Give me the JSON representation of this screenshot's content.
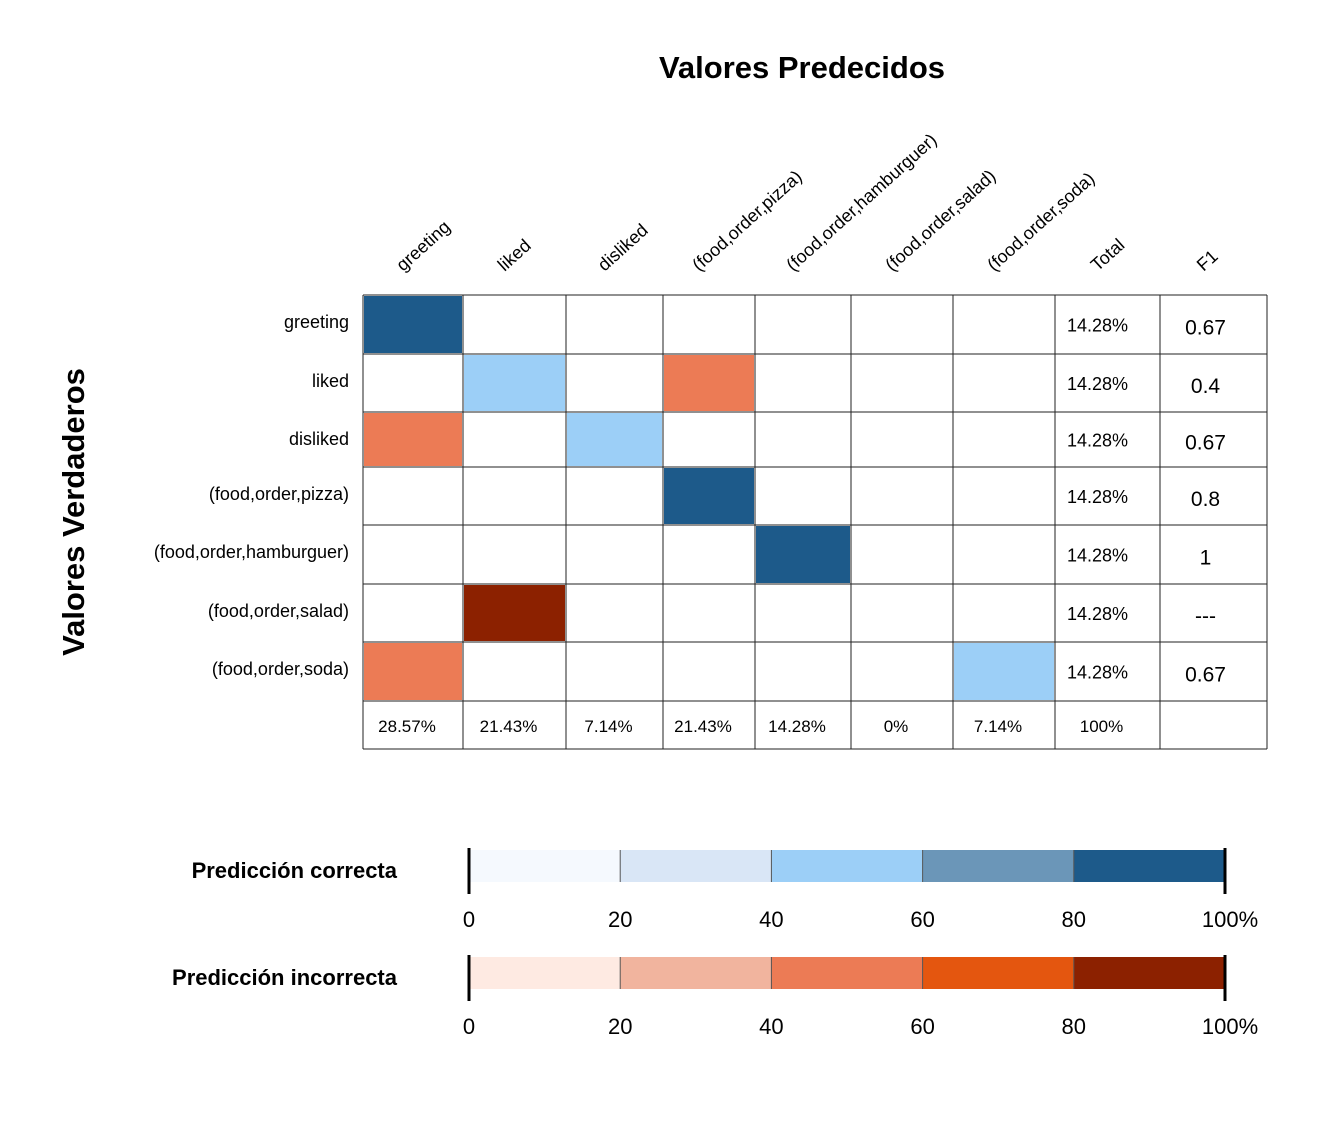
{
  "chart_data": {
    "type": "heatmap",
    "title": "Valores Predecidos",
    "ylabel": "Valores Verdaderos",
    "categories": [
      "greeting",
      "liked",
      "disliked",
      "(food,order,pizza)",
      "(food,order,hamburguer)",
      "(food,order,salad)",
      "(food,order,soda)"
    ],
    "row_labels": [
      "greeting",
      "liked",
      "disliked",
      "(food,order,pizza)",
      "(food,order,hamburguer)",
      "(food,order,salad)",
      "(food,order,soda)"
    ],
    "extra_columns": [
      "Total",
      "F1"
    ],
    "cells": [
      {
        "row": 0,
        "col": 0,
        "kind": "correct",
        "level": 100
      },
      {
        "row": 1,
        "col": 1,
        "kind": "correct",
        "level": 50
      },
      {
        "row": 1,
        "col": 3,
        "kind": "incorrect",
        "level": 50
      },
      {
        "row": 2,
        "col": 0,
        "kind": "incorrect",
        "level": 50
      },
      {
        "row": 2,
        "col": 2,
        "kind": "correct",
        "level": 50
      },
      {
        "row": 3,
        "col": 3,
        "kind": "correct",
        "level": 100
      },
      {
        "row": 4,
        "col": 4,
        "kind": "correct",
        "level": 100
      },
      {
        "row": 5,
        "col": 1,
        "kind": "incorrect",
        "level": 100
      },
      {
        "row": 6,
        "col": 0,
        "kind": "incorrect",
        "level": 50
      },
      {
        "row": 6,
        "col": 6,
        "kind": "correct",
        "level": 50
      }
    ],
    "row_totals": [
      "14.28%",
      "14.28%",
      "14.28%",
      "14.28%",
      "14.28%",
      "14.28%",
      "14.28%"
    ],
    "f1": [
      "0.67",
      "0.4",
      "0.67",
      "0.8",
      "1",
      "---",
      "0.67"
    ],
    "column_totals": [
      "28.57%",
      "21.43%",
      "7.14%",
      "21.43%",
      "14.28%",
      "0%",
      "7.14%",
      "100%"
    ],
    "legends": [
      {
        "label": "Predicción correcta",
        "colors": [
          "#f5f9fe",
          "#d9e6f6",
          "#9ccff7",
          "#6b96b8",
          "#1d5a8a"
        ],
        "ticks": [
          "0",
          "20",
          "40",
          "60",
          "80",
          "100%"
        ]
      },
      {
        "label": "Predicción incorrecta",
        "colors": [
          "#feeae2",
          "#f1b49e",
          "#ec7b55",
          "#e4560f",
          "#8c2100"
        ],
        "ticks": [
          "0",
          "20",
          "40",
          "60",
          "80",
          "100%"
        ]
      }
    ],
    "colors": {
      "correct": {
        "50": "#9ccff7",
        "100": "#1d5a8a"
      },
      "incorrect": {
        "50": "#ec7b55",
        "100": "#8c2100"
      }
    }
  }
}
